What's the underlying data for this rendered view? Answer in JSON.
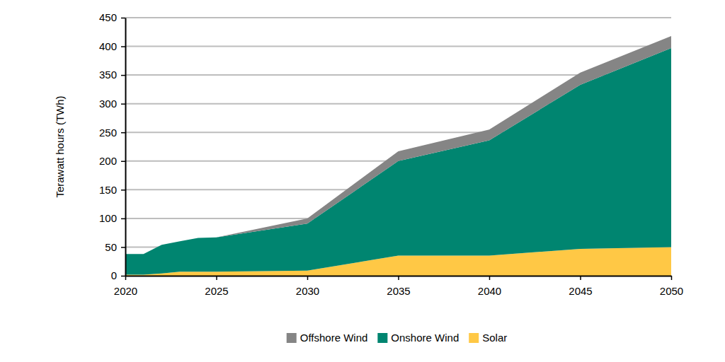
{
  "chart_data": {
    "type": "area",
    "stacked": true,
    "y_label": "Terawatt hours (TWh)",
    "x": [
      2020,
      2021,
      2022,
      2023,
      2024,
      2025,
      2030,
      2035,
      2040,
      2045,
      2050
    ],
    "series": [
      {
        "name": "Offshore Wind",
        "color": "#858585",
        "values": [
          0,
          0,
          0,
          0,
          0,
          0,
          9,
          17,
          19,
          21,
          21
        ]
      },
      {
        "name": "Onshore Wind",
        "color": "#008570",
        "values": [
          36,
          36,
          50,
          53,
          59,
          60,
          82,
          165,
          201,
          286,
          347
        ]
      },
      {
        "name": "Solar",
        "color": "#ffc845",
        "values": [
          2,
          2,
          4,
          7,
          7,
          7,
          9,
          35,
          35,
          47,
          50
        ]
      }
    ],
    "xlim": [
      2020,
      2050
    ],
    "xticks": [
      2020,
      2025,
      2030,
      2035,
      2040,
      2045,
      2050
    ],
    "ylim": [
      0,
      450
    ],
    "yticks": [
      0,
      50,
      100,
      150,
      200,
      250,
      300,
      350,
      400,
      450
    ],
    "grid": true,
    "legend": "bottom"
  }
}
